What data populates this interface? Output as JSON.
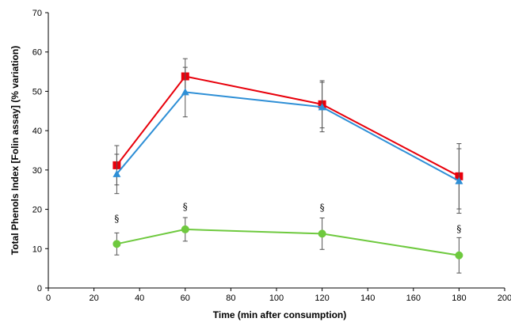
{
  "chart_data": {
    "type": "line",
    "xlabel": "Time (min after consumption)",
    "ylabel": "Total Phenols Index [Folin assay] (% variation)",
    "xlim": [
      0,
      200
    ],
    "ylim": [
      0,
      70
    ],
    "xticks": [
      0,
      20,
      40,
      60,
      80,
      100,
      120,
      140,
      160,
      180,
      200
    ],
    "yticks": [
      0,
      10,
      20,
      30,
      40,
      50,
      60,
      70
    ],
    "grid": false,
    "legend": "none",
    "series": [
      {
        "color": "#e8000b",
        "marker": "square",
        "points": [
          {
            "x": 30,
            "y": 31.2,
            "err": 5.0
          },
          {
            "x": 60,
            "y": 53.8,
            "err": 4.5
          },
          {
            "x": 120,
            "y": 46.7,
            "err": 6.0
          },
          {
            "x": 180,
            "y": 28.4,
            "err": 8.3
          }
        ]
      },
      {
        "color": "#2e8fd6",
        "marker": "triangle",
        "points": [
          {
            "x": 30,
            "y": 29.0,
            "err": 5.0
          },
          {
            "x": 60,
            "y": 49.8,
            "err": 6.3
          },
          {
            "x": 120,
            "y": 46.0,
            "err": 6.3
          },
          {
            "x": 180,
            "y": 27.2,
            "err": 8.2
          }
        ]
      },
      {
        "color": "#6ec93e",
        "marker": "circle",
        "points": [
          {
            "x": 30,
            "y": 11.2,
            "err": 2.8
          },
          {
            "x": 60,
            "y": 14.9,
            "err": 3.0
          },
          {
            "x": 120,
            "y": 13.8,
            "err": 4.0
          },
          {
            "x": 180,
            "y": 8.3,
            "err": 4.5
          }
        ]
      }
    ],
    "annotations": [
      {
        "text": "§",
        "x": 30,
        "y": 16.8
      },
      {
        "text": "§",
        "x": 60,
        "y": 19.8
      },
      {
        "text": "§",
        "x": 120,
        "y": 19.6
      },
      {
        "text": "§",
        "x": 180,
        "y": 14.2
      }
    ]
  }
}
